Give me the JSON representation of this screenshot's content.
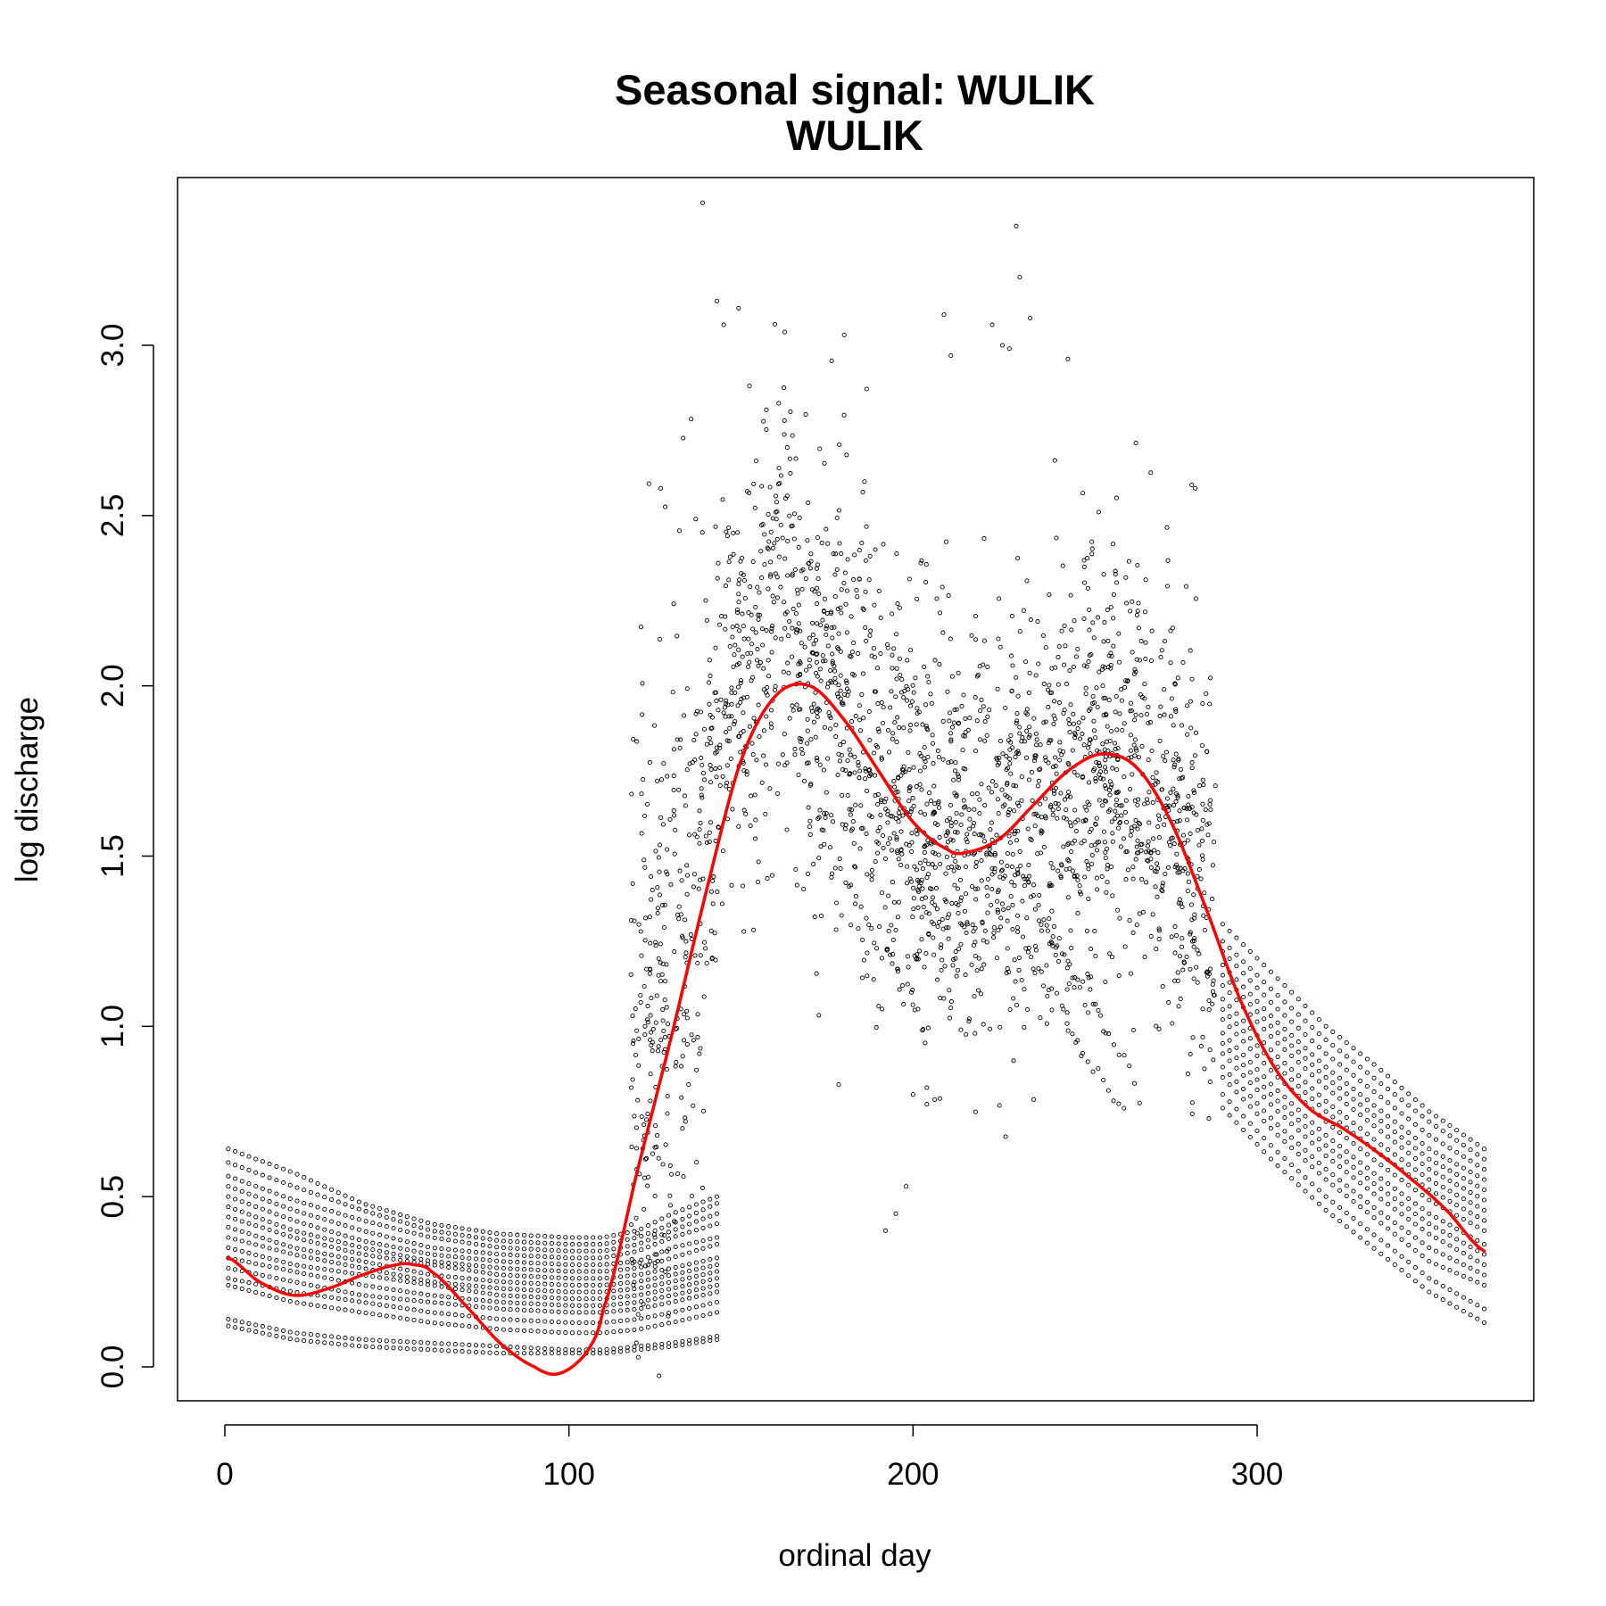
{
  "chart_data": {
    "type": "scatter",
    "title": "Seasonal signal: WULIK",
    "subtitle": "WULIK",
    "xlabel": "ordinal day",
    "ylabel": "log discharge",
    "xlim": [
      -14,
      380
    ],
    "ylim": [
      -0.11,
      3.5
    ],
    "xticks": [
      0,
      100,
      200,
      300
    ],
    "yticks": [
      0.0,
      0.5,
      1.0,
      1.5,
      2.0,
      2.5,
      3.0
    ],
    "xtick_labels": [
      "0",
      "100",
      "200",
      "300"
    ],
    "ytick_labels": [
      "0.0",
      "0.5",
      "1.0",
      "1.5",
      "2.0",
      "2.5",
      "3.0"
    ],
    "grid": false,
    "legend": "none",
    "point_color": "#000000",
    "seasonal_fit": {
      "color": "#ff0000",
      "x": [
        1,
        10,
        20,
        30,
        40,
        50,
        55,
        60,
        70,
        80,
        90,
        97,
        105,
        110,
        120,
        130,
        140,
        150,
        160,
        170,
        180,
        190,
        200,
        210,
        215,
        225,
        235,
        245,
        255,
        265,
        275,
        285,
        295,
        305,
        315,
        325,
        335,
        345,
        355,
        366
      ],
      "y": [
        0.32,
        0.25,
        0.21,
        0.23,
        0.27,
        0.3,
        0.3,
        0.28,
        0.18,
        0.07,
        0.0,
        -0.02,
        0.04,
        0.17,
        0.58,
        0.98,
        1.4,
        1.78,
        1.97,
        2.0,
        1.9,
        1.75,
        1.6,
        1.52,
        1.51,
        1.55,
        1.65,
        1.75,
        1.8,
        1.76,
        1.6,
        1.35,
        1.08,
        0.88,
        0.76,
        0.7,
        0.63,
        0.55,
        0.46,
        0.34
      ]
    },
    "annual_traces": {
      "days": [
        1,
        20,
        40,
        60,
        80,
        100,
        110,
        120,
        130,
        143
      ],
      "low_flow": [
        [
          0.64,
          0.57,
          0.48,
          0.42,
          0.39,
          0.38,
          0.38,
          0.4,
          0.45,
          0.5
        ],
        [
          0.6,
          0.53,
          0.46,
          0.4,
          0.37,
          0.36,
          0.36,
          0.38,
          0.42,
          0.48
        ],
        [
          0.56,
          0.49,
          0.43,
          0.38,
          0.35,
          0.34,
          0.34,
          0.36,
          0.4,
          0.45
        ],
        [
          0.53,
          0.46,
          0.4,
          0.35,
          0.33,
          0.32,
          0.32,
          0.34,
          0.38,
          0.42
        ],
        [
          0.5,
          0.43,
          0.37,
          0.33,
          0.31,
          0.3,
          0.3,
          0.31,
          0.35,
          0.38
        ],
        [
          0.47,
          0.4,
          0.35,
          0.31,
          0.29,
          0.28,
          0.28,
          0.29,
          0.32,
          0.36
        ],
        [
          0.44,
          0.38,
          0.33,
          0.3,
          0.27,
          0.26,
          0.26,
          0.27,
          0.29,
          0.32
        ],
        [
          0.41,
          0.35,
          0.31,
          0.27,
          0.25,
          0.24,
          0.24,
          0.25,
          0.27,
          0.3
        ],
        [
          0.38,
          0.33,
          0.29,
          0.25,
          0.23,
          0.22,
          0.22,
          0.23,
          0.25,
          0.28
        ],
        [
          0.35,
          0.3,
          0.27,
          0.24,
          0.21,
          0.2,
          0.2,
          0.21,
          0.23,
          0.26
        ],
        [
          0.32,
          0.28,
          0.24,
          0.21,
          0.19,
          0.18,
          0.18,
          0.19,
          0.21,
          0.24
        ],
        [
          0.29,
          0.25,
          0.21,
          0.19,
          0.17,
          0.16,
          0.16,
          0.17,
          0.19,
          0.22
        ],
        [
          0.26,
          0.22,
          0.19,
          0.16,
          0.14,
          0.13,
          0.13,
          0.14,
          0.16,
          0.19
        ],
        [
          0.24,
          0.19,
          0.16,
          0.13,
          0.11,
          0.1,
          0.1,
          0.11,
          0.13,
          0.16
        ],
        [
          0.14,
          0.1,
          0.08,
          0.07,
          0.06,
          0.05,
          0.05,
          0.06,
          0.07,
          0.09
        ],
        [
          0.12,
          0.08,
          0.06,
          0.05,
          0.04,
          0.04,
          0.04,
          0.05,
          0.06,
          0.08
        ]
      ],
      "recession_days": [
        290,
        305,
        320,
        335,
        350,
        366
      ],
      "recession": [
        [
          1.3,
          1.15,
          1.0,
          0.88,
          0.75,
          0.64
        ],
        [
          1.25,
          1.1,
          0.96,
          0.84,
          0.72,
          0.61
        ],
        [
          1.22,
          1.06,
          0.92,
          0.8,
          0.68,
          0.58
        ],
        [
          1.18,
          1.02,
          0.88,
          0.76,
          0.64,
          0.55
        ],
        [
          1.15,
          0.99,
          0.85,
          0.73,
          0.61,
          0.52
        ],
        [
          1.12,
          0.96,
          0.82,
          0.7,
          0.58,
          0.49
        ],
        [
          1.08,
          0.92,
          0.78,
          0.66,
          0.55,
          0.46
        ],
        [
          1.05,
          0.89,
          0.75,
          0.63,
          0.52,
          0.43
        ],
        [
          1.02,
          0.86,
          0.72,
          0.6,
          0.49,
          0.4
        ],
        [
          0.98,
          0.82,
          0.68,
          0.56,
          0.45,
          0.36
        ],
        [
          0.95,
          0.79,
          0.65,
          0.53,
          0.42,
          0.33
        ],
        [
          0.92,
          0.76,
          0.62,
          0.5,
          0.39,
          0.3
        ],
        [
          0.88,
          0.72,
          0.58,
          0.46,
          0.35,
          0.27
        ],
        [
          0.85,
          0.69,
          0.55,
          0.43,
          0.31,
          0.24
        ],
        [
          0.8,
          0.64,
          0.5,
          0.38,
          0.26,
          0.17
        ],
        [
          0.76,
          0.6,
          0.46,
          0.34,
          0.22,
          0.13
        ]
      ]
    },
    "notable_points": [
      {
        "x": 230,
        "y": 3.35
      },
      {
        "x": 231,
        "y": 3.2
      },
      {
        "x": 143,
        "y": 3.13
      },
      {
        "x": 209,
        "y": 3.09
      },
      {
        "x": 234,
        "y": 3.08
      },
      {
        "x": 145,
        "y": 3.06
      },
      {
        "x": 223,
        "y": 3.06
      },
      {
        "x": 180,
        "y": 3.03
      },
      {
        "x": 226,
        "y": 3.0
      },
      {
        "x": 228,
        "y": 2.99
      },
      {
        "x": 211,
        "y": 2.97
      },
      {
        "x": 245,
        "y": 2.96
      },
      {
        "x": 281,
        "y": 2.59
      },
      {
        "x": 282,
        "y": 2.58
      },
      {
        "x": 200,
        "y": 0.8
      },
      {
        "x": 198,
        "y": 0.53
      },
      {
        "x": 195,
        "y": 0.45
      },
      {
        "x": 192,
        "y": 0.4
      },
      {
        "x": 204,
        "y": 0.82
      }
    ]
  }
}
